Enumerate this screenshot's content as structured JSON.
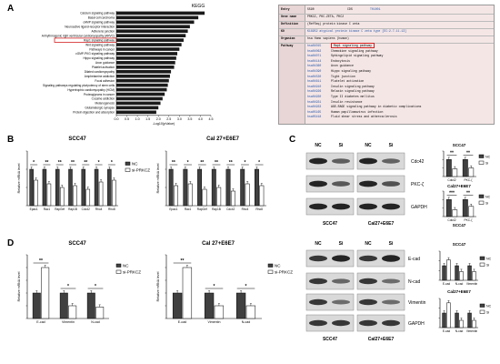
{
  "figure": {
    "panels": [
      "A",
      "B",
      "C",
      "D"
    ],
    "colors": {
      "nc": "#404040",
      "si": "#ffffff",
      "bar": "#1a1a1a",
      "highlight": "#d42020",
      "link": "#2255aa",
      "kegg_bg": "#f5e6e6",
      "kegg_head": "#ede0e0"
    }
  },
  "panel_a": {
    "chart_title": "KEGG",
    "xlabel": "-Log10(pValue)",
    "x_ticks": [
      "0.0",
      "0.5",
      "1.0",
      "1.5",
      "2.0",
      "2.5",
      "3.0",
      "3.5",
      "4.0",
      "4.5"
    ],
    "highlighted": "Rap1 signaling pathway",
    "kegg_entry": {
      "entry_label": "Entry",
      "entry_value": "5590",
      "cds": "CDS",
      "t_number": "T01001",
      "gene_label": "Gene name",
      "gene_value": "PRKCZ, PKC-ZETA, PKC2",
      "def_label": "Definition",
      "def_value": "(RefSeq) protein kinase C zeta",
      "ko_label": "KO",
      "ko_value": "K18952  atypical protein kinase C zeta type [EC:2.7.11.13]",
      "org_label": "Organism",
      "org_value": "hsa  Homo sapiens (human)",
      "pathway_label": "Pathway",
      "pathways": [
        {
          "id": "hsa04015",
          "name": "Rap1 signaling pathway"
        },
        {
          "id": "hsa04062",
          "name": "Chemokine signaling pathway"
        },
        {
          "id": "hsa04071",
          "name": "Sphingolipid signaling pathway"
        },
        {
          "id": "hsa04144",
          "name": "Endocytosis"
        },
        {
          "id": "hsa04360",
          "name": "Axon guidance"
        },
        {
          "id": "hsa04390",
          "name": "Hippo signaling pathway"
        },
        {
          "id": "hsa04530",
          "name": "Tight junction"
        },
        {
          "id": "hsa04611",
          "name": "Platelet activation"
        },
        {
          "id": "hsa04910",
          "name": "Insulin signaling pathway"
        },
        {
          "id": "hsa04926",
          "name": "Relaxin signaling pathway"
        },
        {
          "id": "hsa04930",
          "name": "Type II diabetes mellitus"
        },
        {
          "id": "hsa04931",
          "name": "Insulin resistance"
        },
        {
          "id": "hsa04933",
          "name": "AGE-RAGE signaling pathway in diabetic complications"
        },
        {
          "id": "hsa05165",
          "name": "Human papillomavirus infection"
        },
        {
          "id": "hsa05418",
          "name": "Fluid shear stress and atherosclerosis"
        }
      ]
    }
  },
  "panel_b": {
    "charts": [
      {
        "title": "SCC47",
        "ylabel": "Relative mRNA level",
        "legend": [
          "NC",
          "si-PRKCZ"
        ],
        "categories": [
          "Epac1",
          "Rac1",
          "RapGef",
          "Rap1B",
          "Cdc42",
          "Rho4",
          "Rho8"
        ],
        "sig": [
          "*",
          "**",
          "**",
          "**",
          "**",
          "*",
          "*"
        ]
      },
      {
        "title": "Cal 27+E6E7",
        "ylabel": "Relative mRNA level",
        "legend": [
          "NC",
          "si-PRKCZ"
        ],
        "categories": [
          "Epac1",
          "Rac1",
          "RapGef",
          "Rap1B",
          "Cdc42",
          "Rho4",
          "Rho8"
        ],
        "sig": [
          "**",
          "*",
          "**",
          "**",
          "**",
          "*",
          "*"
        ]
      }
    ]
  },
  "panel_c": {
    "lanes": [
      "NC",
      "Si",
      "NC",
      "Si"
    ],
    "bands": [
      "Cdc42",
      "PKC-ζ",
      "GAPDH"
    ],
    "cells": [
      "SCC47",
      "Cal27+E6E7"
    ],
    "charts": [
      {
        "title": "SCC47",
        "categories": [
          "Cdc42",
          "PKC-ζ"
        ],
        "legend": [
          "NC",
          "Si"
        ],
        "sig": [
          "**",
          "**"
        ]
      },
      {
        "title": "Cal27+E6E7",
        "categories": [
          "Cdc42",
          "PKC-ζ"
        ],
        "legend": [
          "NC",
          "Si"
        ],
        "sig": [
          "***",
          "**"
        ]
      }
    ],
    "footer": "SCC47"
  },
  "panel_d": {
    "charts": [
      {
        "title": "SCC47",
        "ylabel": "Relative mRNA level",
        "legend": [
          "NC",
          "si-PRKCZ"
        ],
        "categories": [
          "E-cad",
          "Vimentin",
          "N-cad"
        ],
        "sig": [
          "**",
          "*",
          "*"
        ]
      },
      {
        "title": "Cal 27+E6E7",
        "ylabel": "Relative mRNA level",
        "legend": [
          "NC",
          "si-PRKCZ"
        ],
        "categories": [
          "E-cad",
          "Vimentin",
          "N-cad"
        ],
        "sig": [
          "**",
          "*",
          "*"
        ]
      }
    ],
    "blot": {
      "bands": [
        "E-cad",
        "N-cad",
        "Vimentin",
        "GAPDH"
      ],
      "lanes": [
        "NC",
        "Si",
        "NC",
        "Si"
      ],
      "cells": [
        "SCC47",
        "Cal27+E6E7"
      ]
    },
    "side_charts": [
      {
        "title": "SCC47",
        "categories": [
          "E-cad",
          "N-cad",
          "Vimentin"
        ],
        "legend": [
          "NC",
          "Si"
        ]
      },
      {
        "title": "Cal27+E6E7",
        "categories": [
          "E-cad",
          "N-cad",
          "Vimentin"
        ],
        "legend": [
          "NC",
          "Si"
        ]
      }
    ]
  },
  "chart_data": [
    {
      "type": "bar",
      "title": "KEGG",
      "xlabel": "-Log10(pValue)",
      "xlim": [
        0,
        4.5
      ],
      "categories": [
        "Calcium signaling pathway",
        "Basal cell carcinoma",
        "cAMP signaling pathway",
        "Neuroactive ligand-receptor interaction",
        "Adherens junction",
        "Arrhythmogenic right ventricular cardiomyopathy (ARVC)",
        "Rap1 signaling pathway",
        "Wnt signaling pathway",
        "Pathways in cancer",
        "cGMP-PKG signaling pathway",
        "Hippo signaling pathway",
        "Axon guidance",
        "Platelet activation",
        "Dilated cardiomyopathy",
        "Amphetamine addiction",
        "Focal adhesion",
        "Signaling pathways regulating pluripotency of stem cells",
        "Hypertrophic cardiomyopathy (HCM)",
        "Proteoglycans in cancer",
        "Cocaine addiction",
        "Melanogenesis",
        "Glutamatergic synapse",
        "Protein digestion and absorption"
      ],
      "values": [
        4.2,
        3.9,
        3.7,
        3.5,
        3.4,
        3.3,
        3.2,
        3.1,
        3.0,
        2.9,
        2.85,
        2.8,
        2.75,
        2.6,
        2.55,
        2.5,
        2.45,
        2.4,
        2.3,
        2.2,
        2.1,
        2.0,
        1.9
      ]
    },
    {
      "type": "bar",
      "title": "SCC47",
      "ylabel": "Relative mRNA level",
      "categories": [
        "Epac1",
        "Rac1",
        "RapGef",
        "Rap1B",
        "Cdc42",
        "Rho4",
        "Rho8"
      ],
      "ylim": [
        0,
        1.5
      ],
      "series": [
        {
          "name": "NC",
          "values": [
            1.0,
            1.0,
            1.0,
            1.0,
            1.0,
            1.0,
            1.0
          ]
        },
        {
          "name": "si-PRKCZ",
          "values": [
            0.7,
            0.6,
            0.5,
            0.55,
            0.45,
            0.65,
            0.7
          ]
        }
      ]
    },
    {
      "type": "bar",
      "title": "Cal 27+E6E7",
      "ylabel": "Relative mRNA level",
      "categories": [
        "Epac1",
        "Rac1",
        "RapGef",
        "Rap1B",
        "Cdc42",
        "Rho4",
        "Rho8"
      ],
      "ylim": [
        0,
        1.5
      ],
      "series": [
        {
          "name": "NC",
          "values": [
            1.0,
            1.0,
            1.0,
            1.0,
            1.0,
            1.0,
            1.0
          ]
        },
        {
          "name": "si-PRKCZ",
          "values": [
            0.55,
            0.6,
            0.45,
            0.5,
            0.4,
            0.6,
            0.55
          ]
        }
      ]
    },
    {
      "type": "bar",
      "title": "SCC47",
      "categories": [
        "Cdc42",
        "PKC-ζ"
      ],
      "ylim": [
        0,
        1.5
      ],
      "series": [
        {
          "name": "NC",
          "values": [
            1.0,
            1.0
          ]
        },
        {
          "name": "Si",
          "values": [
            0.45,
            0.5
          ]
        }
      ]
    },
    {
      "type": "bar",
      "title": "Cal27+E6E7",
      "categories": [
        "Cdc42",
        "PKC-ζ"
      ],
      "ylim": [
        0,
        1.5
      ],
      "series": [
        {
          "name": "NC",
          "values": [
            1.0,
            1.0
          ]
        },
        {
          "name": "Si",
          "values": [
            0.4,
            0.6
          ]
        }
      ]
    },
    {
      "type": "bar",
      "title": "SCC47",
      "ylabel": "Relative mRNA level",
      "categories": [
        "E-cad",
        "Vimentin",
        "N-cad"
      ],
      "ylim": [
        0,
        2.5
      ],
      "series": [
        {
          "name": "NC",
          "values": [
            1.0,
            1.0,
            1.0
          ]
        },
        {
          "name": "si-PRKCZ",
          "values": [
            2.0,
            0.5,
            0.45
          ]
        }
      ]
    },
    {
      "type": "bar",
      "title": "Cal 27+E6E7",
      "ylabel": "Relative mRNA level",
      "categories": [
        "E-cad",
        "Vimentin",
        "N-cad"
      ],
      "ylim": [
        0,
        2.5
      ],
      "series": [
        {
          "name": "NC",
          "values": [
            1.0,
            1.0,
            1.0
          ]
        },
        {
          "name": "si-PRKCZ",
          "values": [
            2.0,
            0.5,
            0.5
          ]
        }
      ]
    },
    {
      "type": "bar",
      "title": "SCC47",
      "categories": [
        "E-cad",
        "N-cad",
        "Vimentin"
      ],
      "ylim": [
        0,
        2
      ],
      "series": [
        {
          "name": "NC",
          "values": [
            1.0,
            1.0,
            1.0
          ]
        },
        {
          "name": "Si",
          "values": [
            1.4,
            0.6,
            0.6
          ]
        }
      ]
    },
    {
      "type": "bar",
      "title": "Cal27+E6E7",
      "categories": [
        "E-cad",
        "N-cad",
        "Vimentin"
      ],
      "ylim": [
        0,
        2
      ],
      "series": [
        {
          "name": "NC",
          "values": [
            1.0,
            1.0,
            1.0
          ]
        },
        {
          "name": "Si",
          "values": [
            1.7,
            0.5,
            0.5
          ]
        }
      ]
    }
  ]
}
